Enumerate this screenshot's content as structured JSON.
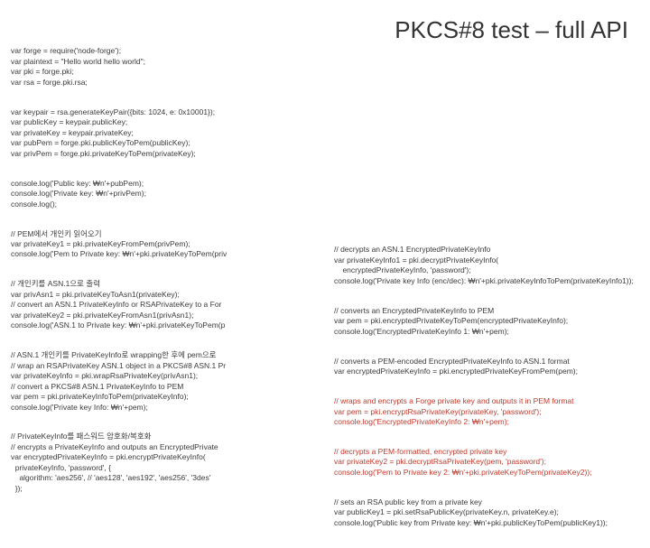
{
  "title": "PKCS#8 test – full API",
  "left": {
    "b1": "var forge = require('node-forge');\nvar plaintext = \"Hello world hello world\";\nvar pki = forge.pki;\nvar rsa = forge.pki.rsa;",
    "b2": "var keypair = rsa.generateKeyPair({bits: 1024, e: 0x10001});\nvar publicKey = keypair.publicKey;\nvar privateKey = keypair.privateKey;\nvar pubPem = forge.pki.publicKeyToPem(publicKey);\nvar privPem = forge.pki.privateKeyToPem(privateKey);",
    "b3": "console.log('Public key: ₩n'+pubPem);\nconsole.log('Private key: ₩n'+privPem);\nconsole.log();",
    "b4": "// PEM에서 개인키 읽어오기\nvar privateKey1 = pki.privateKeyFromPem(privPem);\nconsole.log('Pem to Private key: ₩n'+pki.privateKeyToPem(priv",
    "b5": "// 개인키를 ASN.1으로 출력\nvar privAsn1 = pki.privateKeyToAsn1(privateKey);\n// convert an ASN.1 PrivateKeyInfo or RSAPrivateKey to a For\nvar privateKey2 = pki.privateKeyFromAsn1(privAsn1);\nconsole.log('ASN.1 to Private key: ₩n'+pki.privateKeyToPem(p",
    "b6": "// ASN.1 개인키를 PrivateKeyInfo로 wrapping한 후에 pem으로\n// wrap an RSAPrivateKey ASN.1 object in a PKCS#8 ASN.1 Pr\nvar privateKeyInfo = pki.wrapRsaPrivateKey(privAsn1);\n// convert a PKCS#8 ASN.1 PrivateKeyInfo to PEM\nvar pem = pki.privateKeyInfoToPem(privateKeyInfo);\nconsole.log('Private key Info: ₩n'+pem);",
    "b7": "// PrivateKeyInfo를 패스워드 암호화/복호화\n// encrypts a PrivateKeyInfo and outputs an EncryptedPrivate\nvar encryptedPrivateKeyInfo = pki.encryptPrivateKeyInfo(\n  privateKeyInfo, 'password', {\n    algorithm: 'aes256', // 'aes128', 'aes192', 'aes256', '3des'\n  });"
  },
  "right": {
    "b1": "// decrypts an ASN.1 EncryptedPrivateKeyInfo\nvar privateKeyInfo1 = pki.decryptPrivateKeyInfo(\n    encryptedPrivateKeyInfo, 'password');\nconsole.log('Private key Info (enc/dec): ₩n'+pki.privateKeyInfoToPem(privateKeyInfo1));",
    "b2": "// converts an EncryptedPrivateKeyInfo to PEM\nvar pem = pki.encryptedPrivateKeyToPem(encryptedPrivateKeyInfo);\nconsole.log('EncryptedPrivateKeyInfo 1: ₩n'+pem);",
    "b3": "// converts a PEM-encoded EncryptedPrivateKeyInfo to ASN.1 format\nvar encryptedPrivateKeyInfo = pki.encryptedPrivateKeyFromPem(pem);",
    "b4hl": "// wraps and encrypts a Forge private key and outputs it in PEM format\nvar pem = pki.encryptRsaPrivateKey(privateKey, 'password');\nconsole.log('EncryptedPrivateKeyInfo 2: ₩n'+pem);",
    "b5hl": "// decrypts a PEM-formatted, encrypted private key\nvar privateKey2 = pki.decryptRsaPrivateKey(pem, 'password');\nconsole.log('Pem to Private key 2: ₩n'+pki.privateKeyToPem(privateKey2));",
    "b6": "// sets an RSA public key from a private key\nvar publicKey1 = pki.setRsaPublicKey(privateKey.n, privateKey.e);\nconsole.log('Public key from Private key: ₩n'+pki.publicKeyToPem(publicKey1));"
  }
}
